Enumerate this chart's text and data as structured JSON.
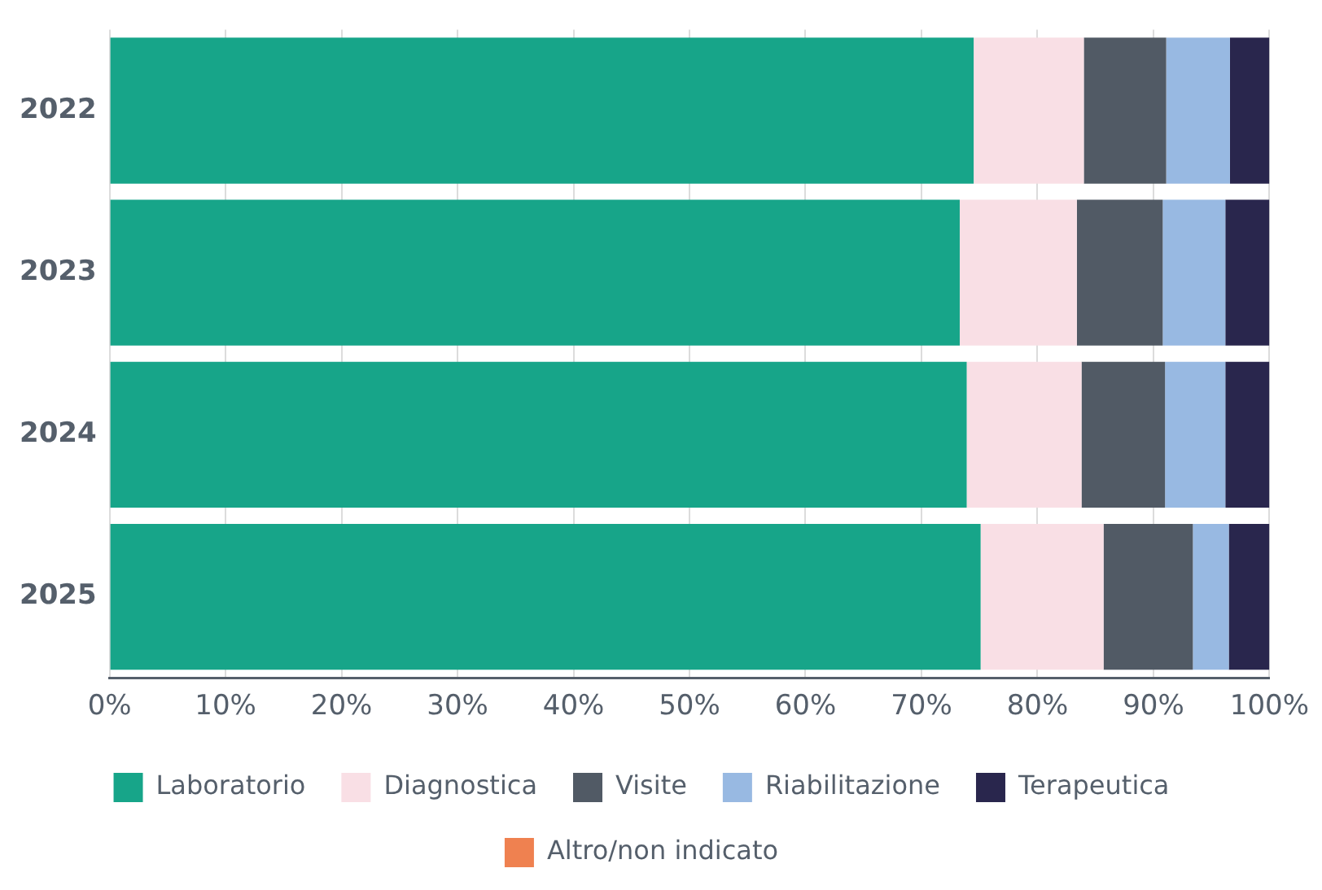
{
  "chart_data": {
    "type": "bar",
    "orientation": "horizontal",
    "stacked": true,
    "categories": [
      "2022",
      "2023",
      "2024",
      "2025"
    ],
    "series": [
      {
        "name": "Laboratorio",
        "color": "#17a589",
        "values": [
          74.5,
          73.3,
          73.9,
          75.1
        ]
      },
      {
        "name": "Diagnostica",
        "color": "#f9dfe5",
        "values": [
          9.5,
          10.1,
          9.9,
          10.6
        ]
      },
      {
        "name": "Visite",
        "color": "#515a65",
        "values": [
          7.1,
          7.4,
          7.2,
          7.7
        ]
      },
      {
        "name": "Riabilitazione",
        "color": "#98b9e2",
        "values": [
          5.5,
          5.4,
          5.2,
          3.1
        ]
      },
      {
        "name": "Terapeutica",
        "color": "#29264d",
        "values": [
          3.4,
          3.8,
          3.8,
          3.5
        ]
      },
      {
        "name": "Altro/non indicato",
        "color": "#ef8150",
        "values": [
          0,
          0,
          0,
          0
        ]
      }
    ],
    "xlim": [
      0,
      100
    ],
    "xticks": [
      {
        "value": 0,
        "label": "0%"
      },
      {
        "value": 10,
        "label": "10%"
      },
      {
        "value": 20,
        "label": "20%"
      },
      {
        "value": 30,
        "label": "30%"
      },
      {
        "value": 40,
        "label": "40%"
      },
      {
        "value": 50,
        "label": "50%"
      },
      {
        "value": 60,
        "label": "60%"
      },
      {
        "value": 70,
        "label": "70%"
      },
      {
        "value": 80,
        "label": "80%"
      },
      {
        "value": 90,
        "label": "90%"
      },
      {
        "value": 100,
        "label": "100%"
      }
    ],
    "grid": "x",
    "legend": "bottom"
  }
}
